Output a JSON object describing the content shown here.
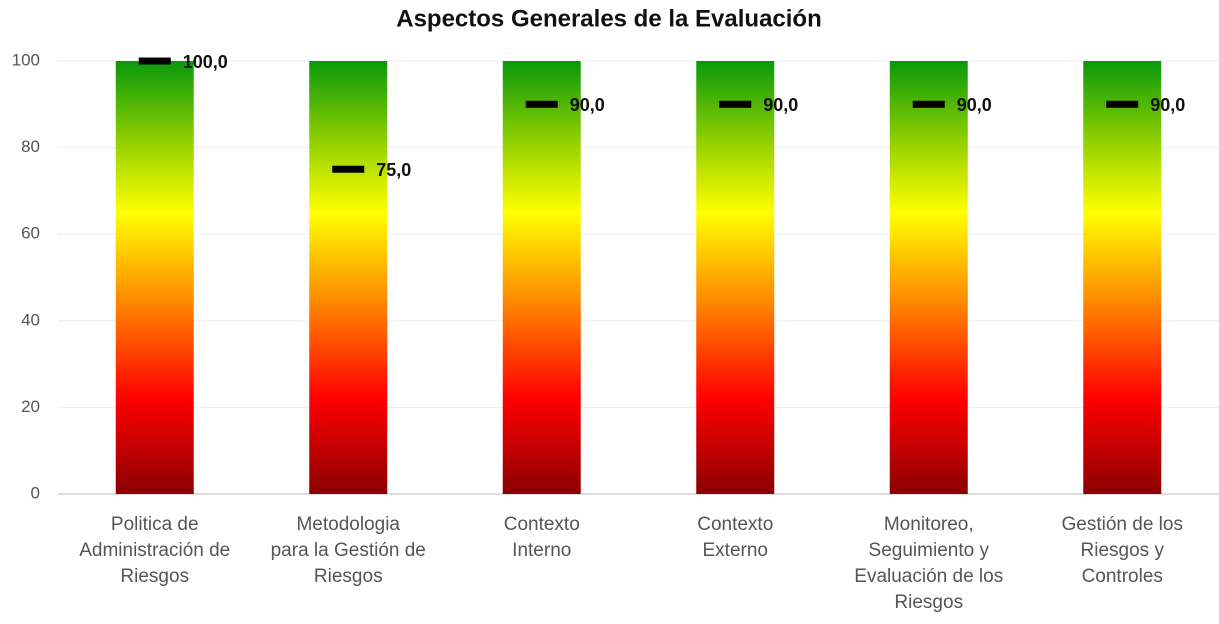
{
  "chart_data": {
    "type": "marker",
    "title": "Aspectos Generales de la Evaluación",
    "categories": [
      [
        "Politica de",
        "Administración de",
        "Riesgos"
      ],
      [
        "Metodologia",
        "para la Gestión de",
        "Riesgos"
      ],
      [
        "Contexto",
        "Interno"
      ],
      [
        "Contexto",
        "Externo"
      ],
      [
        "Monitoreo,",
        "Seguimiento y",
        "Evaluación de los",
        "Riesgos"
      ],
      [
        "Gestión de los",
        "Riesgos y",
        "Controles"
      ]
    ],
    "values": [
      100,
      75,
      90,
      90,
      90,
      90
    ],
    "value_labels": [
      "100,0",
      "75,0",
      "90,0",
      "90,0",
      "90,0",
      "90,0"
    ],
    "color": "#000000",
    "ylim": [
      0,
      100
    ],
    "yticks": [
      0,
      20,
      40,
      60,
      80,
      100
    ],
    "grid": true
  }
}
